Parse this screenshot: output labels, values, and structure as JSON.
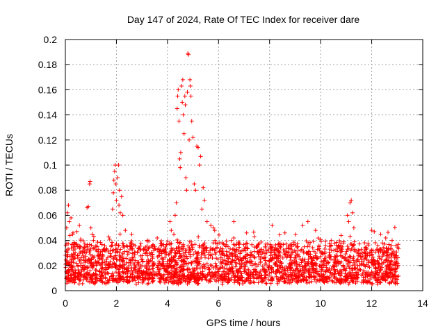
{
  "chart_data": {
    "type": "scatter",
    "title": "Day 147 of 2024, Rate Of TEC Index for receiver dare",
    "xlabel": "GPS time / hours",
    "ylabel": "ROTI / TECUs",
    "xlim": [
      0,
      14
    ],
    "ylim": [
      0,
      0.2
    ],
    "xticks": [
      0,
      2,
      4,
      6,
      8,
      10,
      12,
      14
    ],
    "xtick_labels": [
      "0",
      "2",
      "4",
      "6",
      "8",
      "10",
      "12",
      "14"
    ],
    "yticks": [
      0,
      0.02,
      0.04,
      0.06,
      0.08,
      0.1,
      0.12,
      0.14,
      0.16,
      0.18,
      0.2
    ],
    "ytick_labels": [
      "0",
      "0.02",
      "0.04",
      "0.06",
      "0.08",
      "0.1",
      "0.12",
      "0.14",
      "0.16",
      "0.18",
      "0.2"
    ],
    "grid": true,
    "marker": "+",
    "color": "#ff0000",
    "series": [
      {
        "name": "ROTI",
        "points": [
          [
            0.05,
            0.05
          ],
          [
            0.08,
            0.062
          ],
          [
            0.12,
            0.068
          ],
          [
            0.15,
            0.055
          ],
          [
            0.18,
            0.044
          ],
          [
            0.22,
            0.058
          ],
          [
            0.3,
            0.046
          ],
          [
            0.45,
            0.047
          ],
          [
            0.55,
            0.052
          ],
          [
            0.6,
            0.041
          ],
          [
            0.85,
            0.066
          ],
          [
            0.9,
            0.067
          ],
          [
            0.95,
            0.085
          ],
          [
            0.97,
            0.087
          ],
          [
            1.0,
            0.05
          ],
          [
            1.05,
            0.045
          ],
          [
            1.1,
            0.04
          ],
          [
            1.85,
            0.065
          ],
          [
            1.88,
            0.078
          ],
          [
            1.9,
            0.088
          ],
          [
            1.93,
            0.095
          ],
          [
            1.95,
            0.1
          ],
          [
            1.98,
            0.085
          ],
          [
            2.0,
            0.072
          ],
          [
            2.05,
            0.09
          ],
          [
            2.08,
            0.1
          ],
          [
            2.1,
            0.068
          ],
          [
            2.12,
            0.08
          ],
          [
            2.15,
            0.062
          ],
          [
            2.2,
            0.075
          ],
          [
            2.25,
            0.06
          ],
          [
            2.35,
            0.048
          ],
          [
            2.6,
            0.045
          ],
          [
            3.2,
            0.04
          ],
          [
            3.6,
            0.042
          ],
          [
            4.1,
            0.055
          ],
          [
            4.15,
            0.048
          ],
          [
            4.25,
            0.045
          ],
          [
            4.3,
            0.06
          ],
          [
            4.35,
            0.07
          ],
          [
            4.38,
            0.145
          ],
          [
            4.4,
            0.155
          ],
          [
            4.42,
            0.16
          ],
          [
            4.45,
            0.135
          ],
          [
            4.48,
            0.105
          ],
          [
            4.5,
            0.098
          ],
          [
            4.52,
            0.11
          ],
          [
            4.55,
            0.163
          ],
          [
            4.58,
            0.15
          ],
          [
            4.6,
            0.168
          ],
          [
            4.62,
            0.14
          ],
          [
            4.65,
            0.125
          ],
          [
            4.68,
            0.155
          ],
          [
            4.7,
            0.148
          ],
          [
            4.72,
            0.09
          ],
          [
            4.75,
            0.08
          ],
          [
            4.78,
            0.158
          ],
          [
            4.8,
            0.189
          ],
          [
            4.82,
            0.188
          ],
          [
            4.85,
            0.12
          ],
          [
            4.88,
            0.168
          ],
          [
            4.9,
            0.163
          ],
          [
            4.92,
            0.155
          ],
          [
            4.95,
            0.135
          ],
          [
            5.0,
            0.122
          ],
          [
            5.05,
            0.085
          ],
          [
            5.1,
            0.08
          ],
          [
            5.15,
            0.115
          ],
          [
            5.2,
            0.114
          ],
          [
            5.25,
            0.1
          ],
          [
            5.3,
            0.107
          ],
          [
            5.35,
            0.065
          ],
          [
            5.4,
            0.082
          ],
          [
            5.45,
            0.072
          ],
          [
            5.55,
            0.055
          ],
          [
            5.7,
            0.052
          ],
          [
            5.8,
            0.05
          ],
          [
            5.85,
            0.048
          ],
          [
            6.6,
            0.055
          ],
          [
            7.1,
            0.046
          ],
          [
            7.4,
            0.043
          ],
          [
            8.1,
            0.052
          ],
          [
            8.6,
            0.046
          ],
          [
            9.3,
            0.052
          ],
          [
            9.5,
            0.055
          ],
          [
            9.8,
            0.048
          ],
          [
            10.8,
            0.044
          ],
          [
            11.05,
            0.06
          ],
          [
            11.1,
            0.055
          ],
          [
            11.15,
            0.07
          ],
          [
            11.2,
            0.072
          ],
          [
            11.25,
            0.062
          ],
          [
            11.3,
            0.05
          ],
          [
            12.0,
            0.048
          ],
          [
            12.1,
            0.047
          ],
          [
            12.35,
            0.045
          ],
          [
            12.55,
            0.042
          ],
          [
            12.8,
            0.04
          ],
          [
            12.95,
            0.036
          ]
        ],
        "dense_band": {
          "x_range": [
            0,
            13.05
          ],
          "y_typical_range": [
            0.005,
            0.035
          ],
          "description_values": [
            [
              0,
              0.02
            ],
            [
              2,
              0.02
            ],
            [
              4,
              0.02
            ],
            [
              6,
              0.018
            ],
            [
              8,
              0.018
            ],
            [
              10,
              0.017
            ],
            [
              12,
              0.018
            ],
            [
              13,
              0.018
            ]
          ]
        }
      }
    ]
  }
}
